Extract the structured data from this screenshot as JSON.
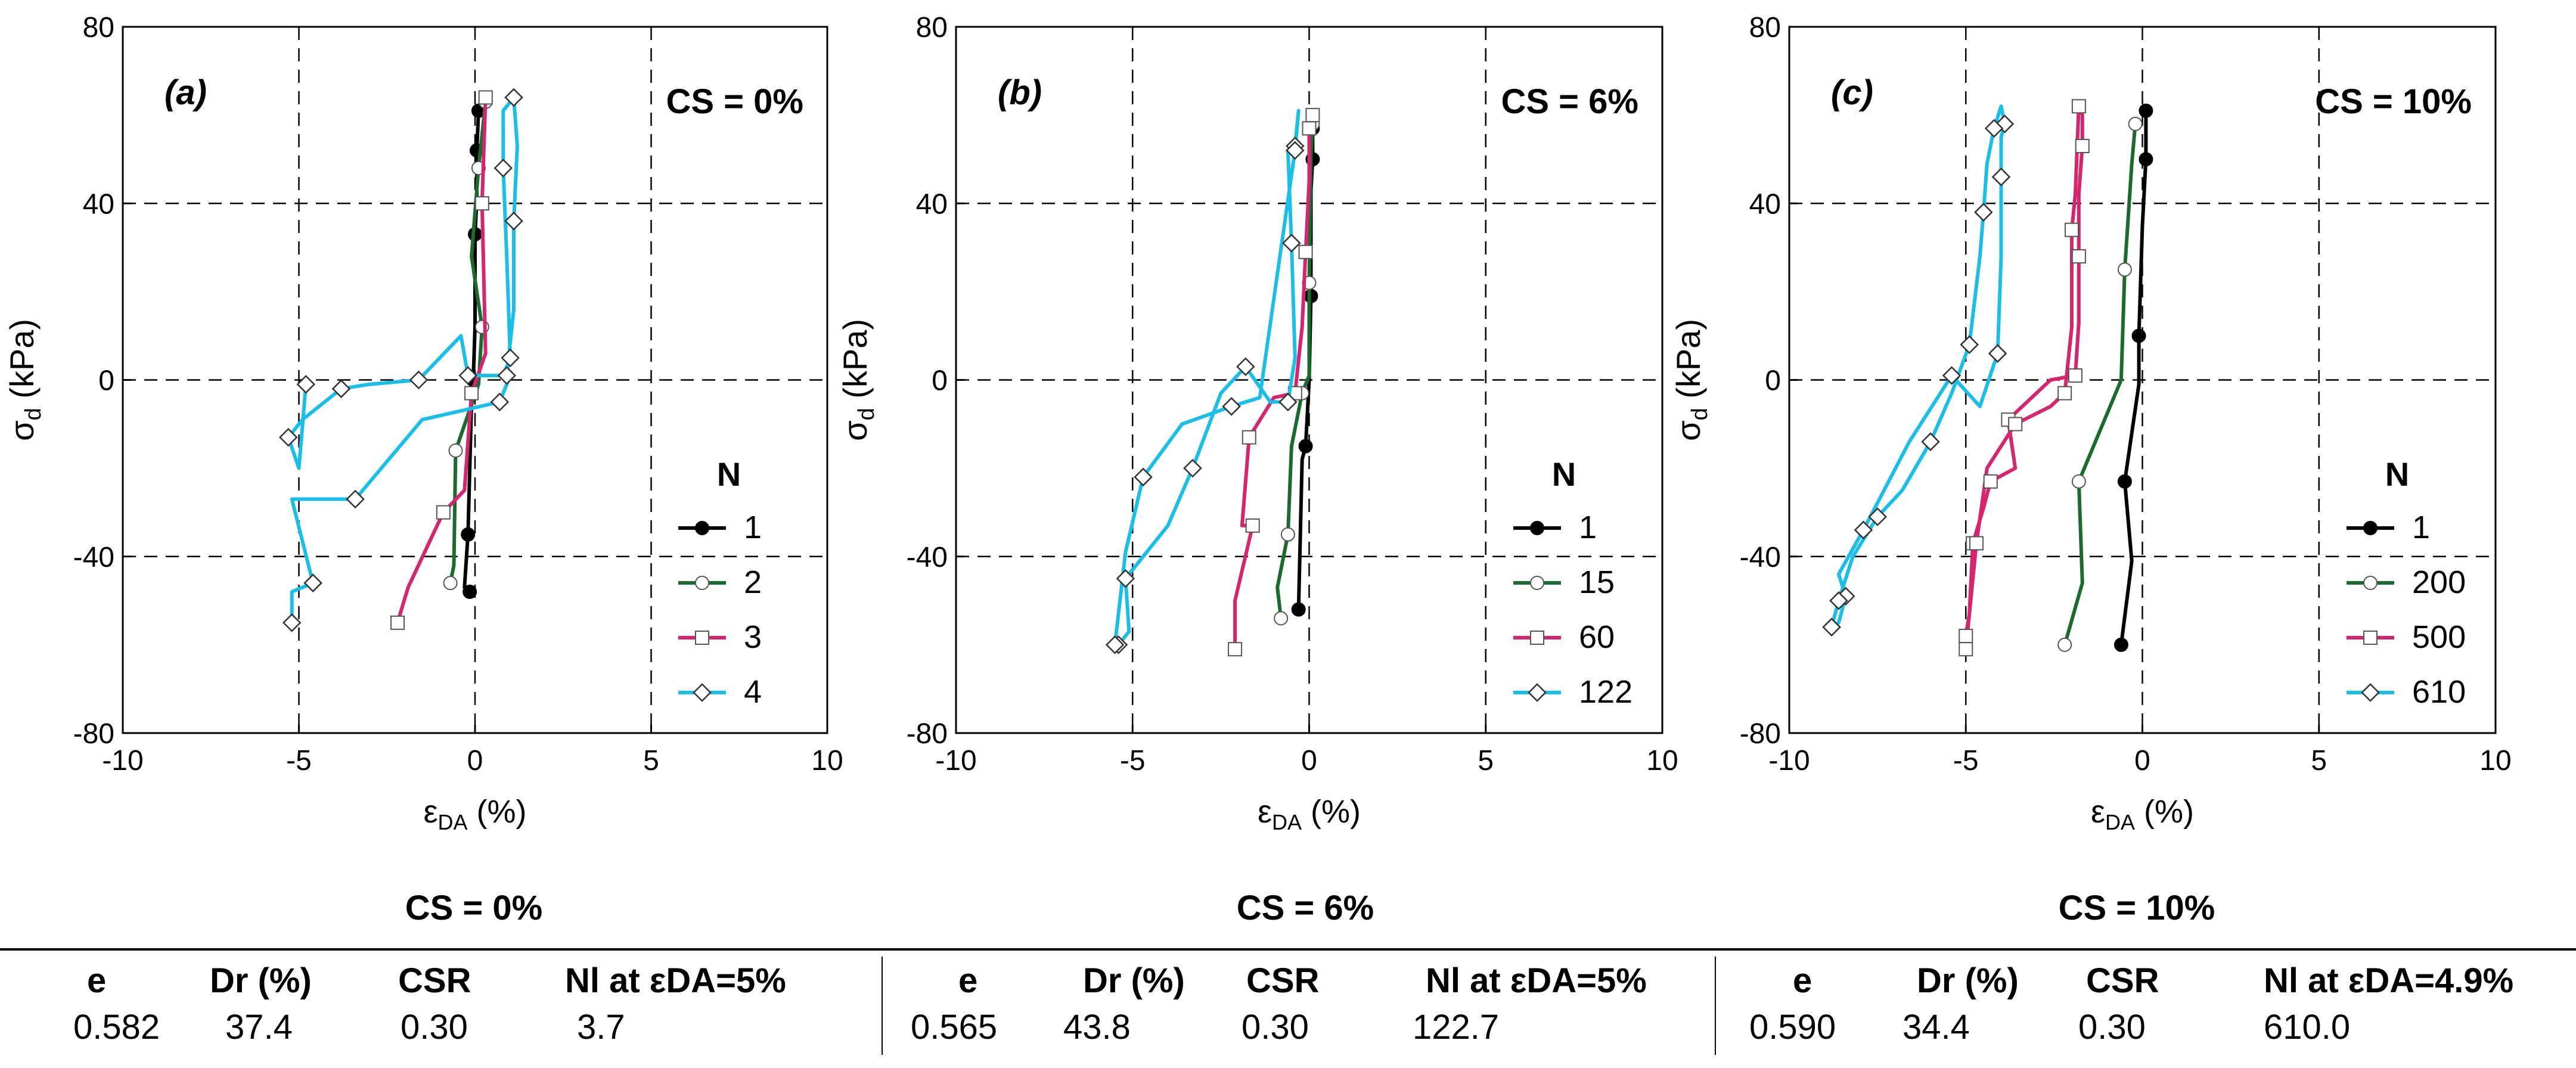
{
  "panels": [
    {
      "letter": "(a)",
      "cs_label": "CS = 0%",
      "legend_title": "N",
      "series": [
        {
          "label": "1",
          "color": "#000000",
          "marker": "filled-circle",
          "points": [
            [
              -0.15,
              -48
            ],
            [
              -0.3,
              -47
            ],
            [
              -0.2,
              -35
            ],
            [
              -0.1,
              -5
            ],
            [
              -0.05,
              0
            ],
            [
              0,
              12
            ],
            [
              0,
              33
            ],
            [
              0.05,
              41
            ],
            [
              0.05,
              52
            ],
            [
              0.1,
              61
            ]
          ]
        },
        {
          "label": "2",
          "color": "#1a6b2e",
          "marker": "open-circle",
          "points": [
            [
              -0.7,
              -46
            ],
            [
              -0.6,
              -42
            ],
            [
              -0.55,
              -16
            ],
            [
              0.1,
              -1
            ],
            [
              0.2,
              12
            ],
            [
              -0.1,
              28
            ],
            [
              0.1,
              48
            ],
            [
              0.3,
              63
            ]
          ]
        },
        {
          "label": "3",
          "color": "#d6246e",
          "marker": "open-square",
          "points": [
            [
              -2.2,
              -55
            ],
            [
              -1.9,
              -47
            ],
            [
              -0.9,
              -30
            ],
            [
              -0.3,
              -25
            ],
            [
              -0.1,
              -3
            ],
            [
              0.3,
              6
            ],
            [
              0.2,
              40
            ],
            [
              0.3,
              64
            ]
          ]
        },
        {
          "label": "4",
          "color": "#19bfe8",
          "marker": "open-diamond",
          "points": [
            [
              -5.2,
              -55
            ],
            [
              -5.2,
              -48
            ],
            [
              -4.6,
              -46
            ],
            [
              -5.2,
              -27
            ],
            [
              -3.4,
              -27
            ],
            [
              -1.5,
              -9
            ],
            [
              0.7,
              -5
            ],
            [
              1.0,
              1
            ],
            [
              0.9,
              1
            ],
            [
              1.1,
              16
            ],
            [
              1.1,
              36
            ],
            [
              1.2,
              53
            ],
            [
              1.1,
              64
            ],
            [
              0.8,
              61
            ],
            [
              0.8,
              48
            ],
            [
              0.9,
              28
            ],
            [
              1.0,
              5
            ],
            [
              0.8,
              1
            ],
            [
              -0.2,
              1
            ],
            [
              -0.4,
              10
            ],
            [
              -1.6,
              0
            ],
            [
              -3.0,
              -1
            ],
            [
              -3.8,
              -2
            ],
            [
              -4.9,
              -9
            ],
            [
              -5.3,
              -13
            ],
            [
              -5.0,
              -20
            ],
            [
              -4.8,
              -1
            ]
          ]
        }
      ]
    },
    {
      "letter": "(b)",
      "cs_label": "CS = 6%",
      "legend_title": "N",
      "series": [
        {
          "label": "1",
          "color": "#000000",
          "marker": "filled-circle",
          "points": [
            [
              -0.3,
              -52
            ],
            [
              -0.2,
              -18
            ],
            [
              -0.1,
              -15
            ],
            [
              0,
              0
            ],
            [
              0.05,
              19
            ],
            [
              0.05,
              43
            ],
            [
              0.1,
              50
            ],
            [
              0.1,
              57
            ]
          ]
        },
        {
          "label": "15",
          "color": "#1a6b2e",
          "marker": "open-circle",
          "points": [
            [
              -0.8,
              -54
            ],
            [
              -0.9,
              -47
            ],
            [
              -0.6,
              -35
            ],
            [
              -0.5,
              -15
            ],
            [
              -0.2,
              -3
            ],
            [
              0,
              1
            ],
            [
              0,
              22
            ],
            [
              0.05,
              51
            ],
            [
              0.1,
              58
            ]
          ]
        },
        {
          "label": "60",
          "color": "#d6246e",
          "marker": "open-square",
          "points": [
            [
              -2.1,
              -61
            ],
            [
              -2.1,
              -50
            ],
            [
              -1.6,
              -33
            ],
            [
              -1.9,
              -33
            ],
            [
              -1.7,
              -13
            ],
            [
              -1.0,
              -4
            ],
            [
              -0.4,
              -3
            ],
            [
              -0.2,
              12
            ],
            [
              -0.1,
              29
            ],
            [
              0,
              45
            ],
            [
              0,
              57
            ],
            [
              0.1,
              60
            ]
          ]
        },
        {
          "label": "122",
          "color": "#19bfe8",
          "marker": "open-diamond",
          "points": [
            [
              -5.4,
              -60
            ],
            [
              -5.1,
              -57
            ],
            [
              -5.2,
              -45
            ],
            [
              -4.0,
              -33
            ],
            [
              -3.3,
              -20
            ],
            [
              -2.5,
              -3
            ],
            [
              -1.8,
              3
            ],
            [
              -1.1,
              -5
            ],
            [
              -0.6,
              -5
            ],
            [
              -0.4,
              5
            ],
            [
              -0.5,
              31
            ],
            [
              -0.6,
              52
            ],
            [
              -0.4,
              53
            ],
            [
              -0.3,
              61
            ],
            [
              -0.4,
              52
            ],
            [
              -1.4,
              -4
            ],
            [
              -2.2,
              -6
            ],
            [
              -3.6,
              -10
            ],
            [
              -4.7,
              -22
            ],
            [
              -5.2,
              -39
            ],
            [
              -5.5,
              -60
            ]
          ]
        }
      ]
    },
    {
      "letter": "(c)",
      "cs_label": "CS = 10%",
      "legend_title": "N",
      "series": [
        {
          "label": "1",
          "color": "#000000",
          "marker": "filled-circle",
          "points": [
            [
              -0.6,
              -60
            ],
            [
              -0.3,
              -41
            ],
            [
              -0.5,
              -23
            ],
            [
              -0.1,
              -1
            ],
            [
              -0.1,
              10
            ],
            [
              0,
              35
            ],
            [
              0.1,
              50
            ],
            [
              0.1,
              61
            ]
          ]
        },
        {
          "label": "200",
          "color": "#1a6b2e",
          "marker": "open-circle",
          "points": [
            [
              -2.2,
              -60
            ],
            [
              -1.7,
              -46
            ],
            [
              -1.8,
              -23
            ],
            [
              -0.6,
              0
            ],
            [
              -0.5,
              25
            ],
            [
              -0.3,
              49
            ],
            [
              -0.2,
              58
            ]
          ]
        },
        {
          "label": "500",
          "color": "#d6246e",
          "marker": "open-square",
          "points": [
            [
              -5.0,
              -61
            ],
            [
              -4.9,
              -53
            ],
            [
              -4.8,
              -37
            ],
            [
              -4.5,
              -29
            ],
            [
              -4.3,
              -23
            ],
            [
              -3.6,
              -20
            ],
            [
              -3.8,
              -9
            ],
            [
              -2.6,
              0
            ],
            [
              -1.9,
              1
            ],
            [
              -1.8,
              13
            ],
            [
              -1.8,
              28
            ],
            [
              -1.8,
              42
            ],
            [
              -1.7,
              53
            ],
            [
              -1.7,
              60
            ],
            [
              -1.8,
              62
            ],
            [
              -1.9,
              42
            ],
            [
              -2.0,
              34
            ],
            [
              -2.0,
              12
            ],
            [
              -2.2,
              -3
            ],
            [
              -2.6,
              -6
            ],
            [
              -3.6,
              -10
            ],
            [
              -4.4,
              -20
            ],
            [
              -4.7,
              -37
            ],
            [
              -4.9,
              -53
            ],
            [
              -5.0,
              -58
            ]
          ]
        },
        {
          "label": "610",
          "color": "#19bfe8",
          "marker": "open-diamond",
          "points": [
            [
              -8.8,
              -56
            ],
            [
              -8.6,
              -55
            ],
            [
              -8.4,
              -49
            ],
            [
              -8.6,
              -44
            ],
            [
              -7.9,
              -34
            ],
            [
              -6.6,
              -14
            ],
            [
              -5.4,
              1
            ],
            [
              -4.6,
              -6
            ],
            [
              -4.1,
              6
            ],
            [
              -4.0,
              28
            ],
            [
              -4.0,
              46
            ],
            [
              -4.0,
              55
            ],
            [
              -3.9,
              58
            ],
            [
              -4.0,
              62
            ],
            [
              -4.2,
              57
            ],
            [
              -4.4,
              49
            ],
            [
              -4.5,
              38
            ],
            [
              -4.6,
              28
            ],
            [
              -4.9,
              8
            ],
            [
              -5.4,
              -3
            ],
            [
              -6.0,
              -14
            ],
            [
              -6.8,
              -25
            ],
            [
              -7.5,
              -31
            ],
            [
              -8.2,
              -40
            ],
            [
              -8.6,
              -50
            ],
            [
              -8.8,
              -56
            ]
          ]
        }
      ]
    }
  ],
  "axes": {
    "xlabel": "εDA (%)",
    "ylabel": "σd (kPa)",
    "xlim": [
      -10,
      10
    ],
    "ylim": [
      -80,
      80
    ],
    "xticks": [
      "-10",
      "-5",
      "0",
      "5",
      "10"
    ],
    "yticks": [
      "80",
      "40",
      "0",
      "-40",
      "-80"
    ],
    "xtick_values": [
      -10,
      -5,
      0,
      5,
      10
    ],
    "ytick_values": [
      80,
      40,
      0,
      -40,
      -80
    ]
  },
  "chart_data": [
    {
      "type": "line",
      "title": "(a) CS = 0%",
      "xlabel": "εDA (%)",
      "ylabel": "σd (kPa)",
      "xlim": [
        -10,
        10
      ],
      "ylim": [
        -80,
        80
      ],
      "legend_title": "N",
      "series_names": [
        "1",
        "2",
        "3",
        "4"
      ]
    },
    {
      "type": "line",
      "title": "(b) CS = 6%",
      "xlabel": "εDA (%)",
      "ylabel": "σd (kPa)",
      "xlim": [
        -10,
        10
      ],
      "ylim": [
        -80,
        80
      ],
      "legend_title": "N",
      "series_names": [
        "1",
        "15",
        "60",
        "122"
      ]
    },
    {
      "type": "line",
      "title": "(c) CS = 10%",
      "xlabel": "εDA (%)",
      "ylabel": "σd (kPa)",
      "xlim": [
        -10,
        10
      ],
      "ylim": [
        -80,
        80
      ],
      "legend_title": "N",
      "series_names": [
        "1",
        "200",
        "500",
        "610"
      ]
    }
  ],
  "table": {
    "groups": [
      {
        "title": "CS = 0%",
        "h_e": "e",
        "h_dr": "Dr (%)",
        "h_csr": "CSR",
        "h_nl": "Nl at εDA=5%",
        "e": "0.582",
        "dr": "37.4",
        "csr": "0.30",
        "nl": "3.7"
      },
      {
        "title": "CS = 6%",
        "h_e": "e",
        "h_dr": "Dr (%)",
        "h_csr": "CSR",
        "h_nl": "Nl at εDA=5%",
        "e": "0.565",
        "dr": "43.8",
        "csr": "0.30",
        "nl": "122.7"
      },
      {
        "title": "CS = 10%",
        "h_e": "e",
        "h_dr": "Dr (%)",
        "h_csr": "CSR",
        "h_nl": "Nl at εDA=4.9%",
        "e": "0.590",
        "dr": "34.4",
        "csr": "0.30",
        "nl": "610.0"
      }
    ]
  }
}
